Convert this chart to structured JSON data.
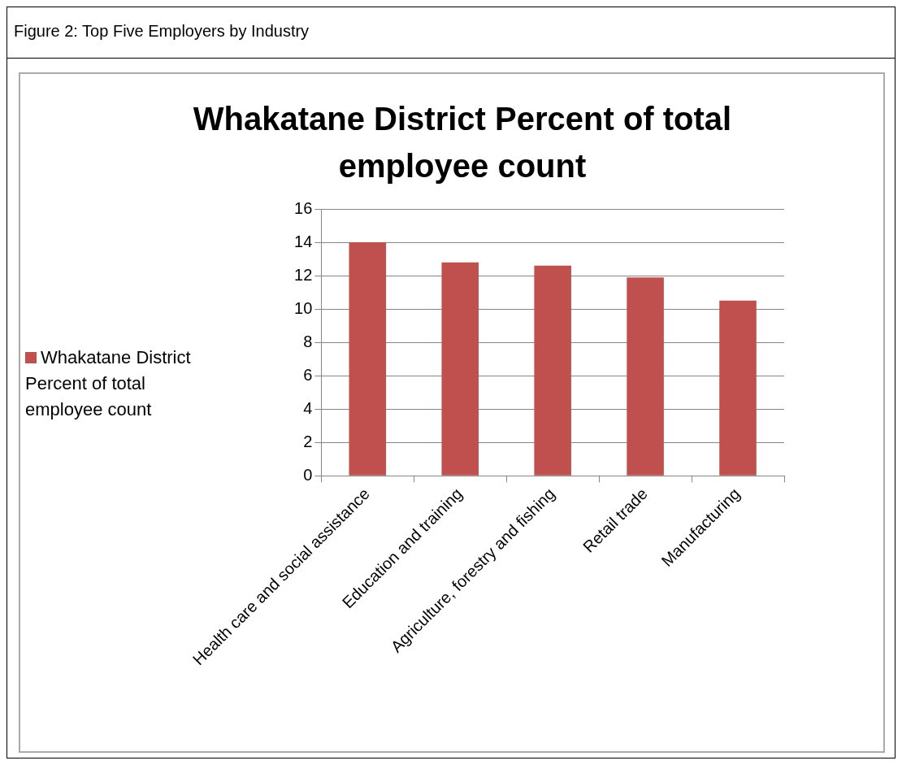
{
  "chart_data": {
    "type": "bar",
    "title": "Whakatane District Percent of total employee count",
    "annotations": [
      "Figure 2: Top Five Employers by Industry"
    ],
    "categories": [
      "Health care and social assistance",
      "Education and training",
      "Agriculture, forestry and fishing",
      "Retail trade",
      "Manufacturing"
    ],
    "series": [
      {
        "name": "Whakatane District Percent of total employee count",
        "color": "#c0504d",
        "values": [
          14.0,
          12.8,
          12.6,
          11.9,
          10.5
        ]
      }
    ],
    "ylim": [
      0,
      16
    ],
    "yticks": [
      0,
      2,
      4,
      6,
      8,
      10,
      12,
      14,
      16
    ],
    "grid": "y",
    "legend": "left"
  }
}
